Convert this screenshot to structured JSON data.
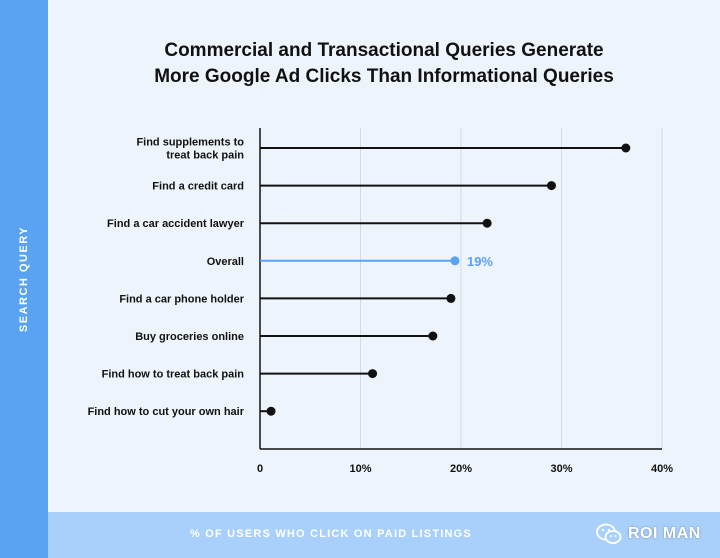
{
  "chart_data": {
    "type": "lollipop",
    "title_lines": [
      "Commercial and Transactional Queries Generate",
      "More Google Ad Clicks Than Informational Queries"
    ],
    "ylabel": "SEARCH QUERY",
    "xlabel": "% OF USERS WHO CLICK ON PAID LISTINGS",
    "xlim": [
      0,
      40
    ],
    "x_ticks": [
      0,
      10,
      20,
      30,
      40
    ],
    "x_tick_labels": [
      "0",
      "10%",
      "20%",
      "30%",
      "40%"
    ],
    "grid": "vertical",
    "categories": [
      [
        "Find supplements to",
        "treat back pain"
      ],
      [
        "Find a credit card"
      ],
      [
        "Find a car accident lawyer"
      ],
      [
        "Overall"
      ],
      [
        "Find a car phone holder"
      ],
      [
        "Buy groceries online"
      ],
      [
        "Find how to treat back pain"
      ],
      [
        "Find how to cut your own hair"
      ]
    ],
    "values": [
      36.4,
      29.0,
      22.6,
      19.4,
      19.0,
      17.2,
      11.2,
      1.1
    ],
    "highlight_index": 3,
    "highlight_label": "19%",
    "colors": {
      "default": "#111111",
      "highlight": "#5aa2f2",
      "grid": "#d3dbe5"
    }
  },
  "watermark": {
    "text": "ROI MAN",
    "icon": "wechat-icon"
  }
}
